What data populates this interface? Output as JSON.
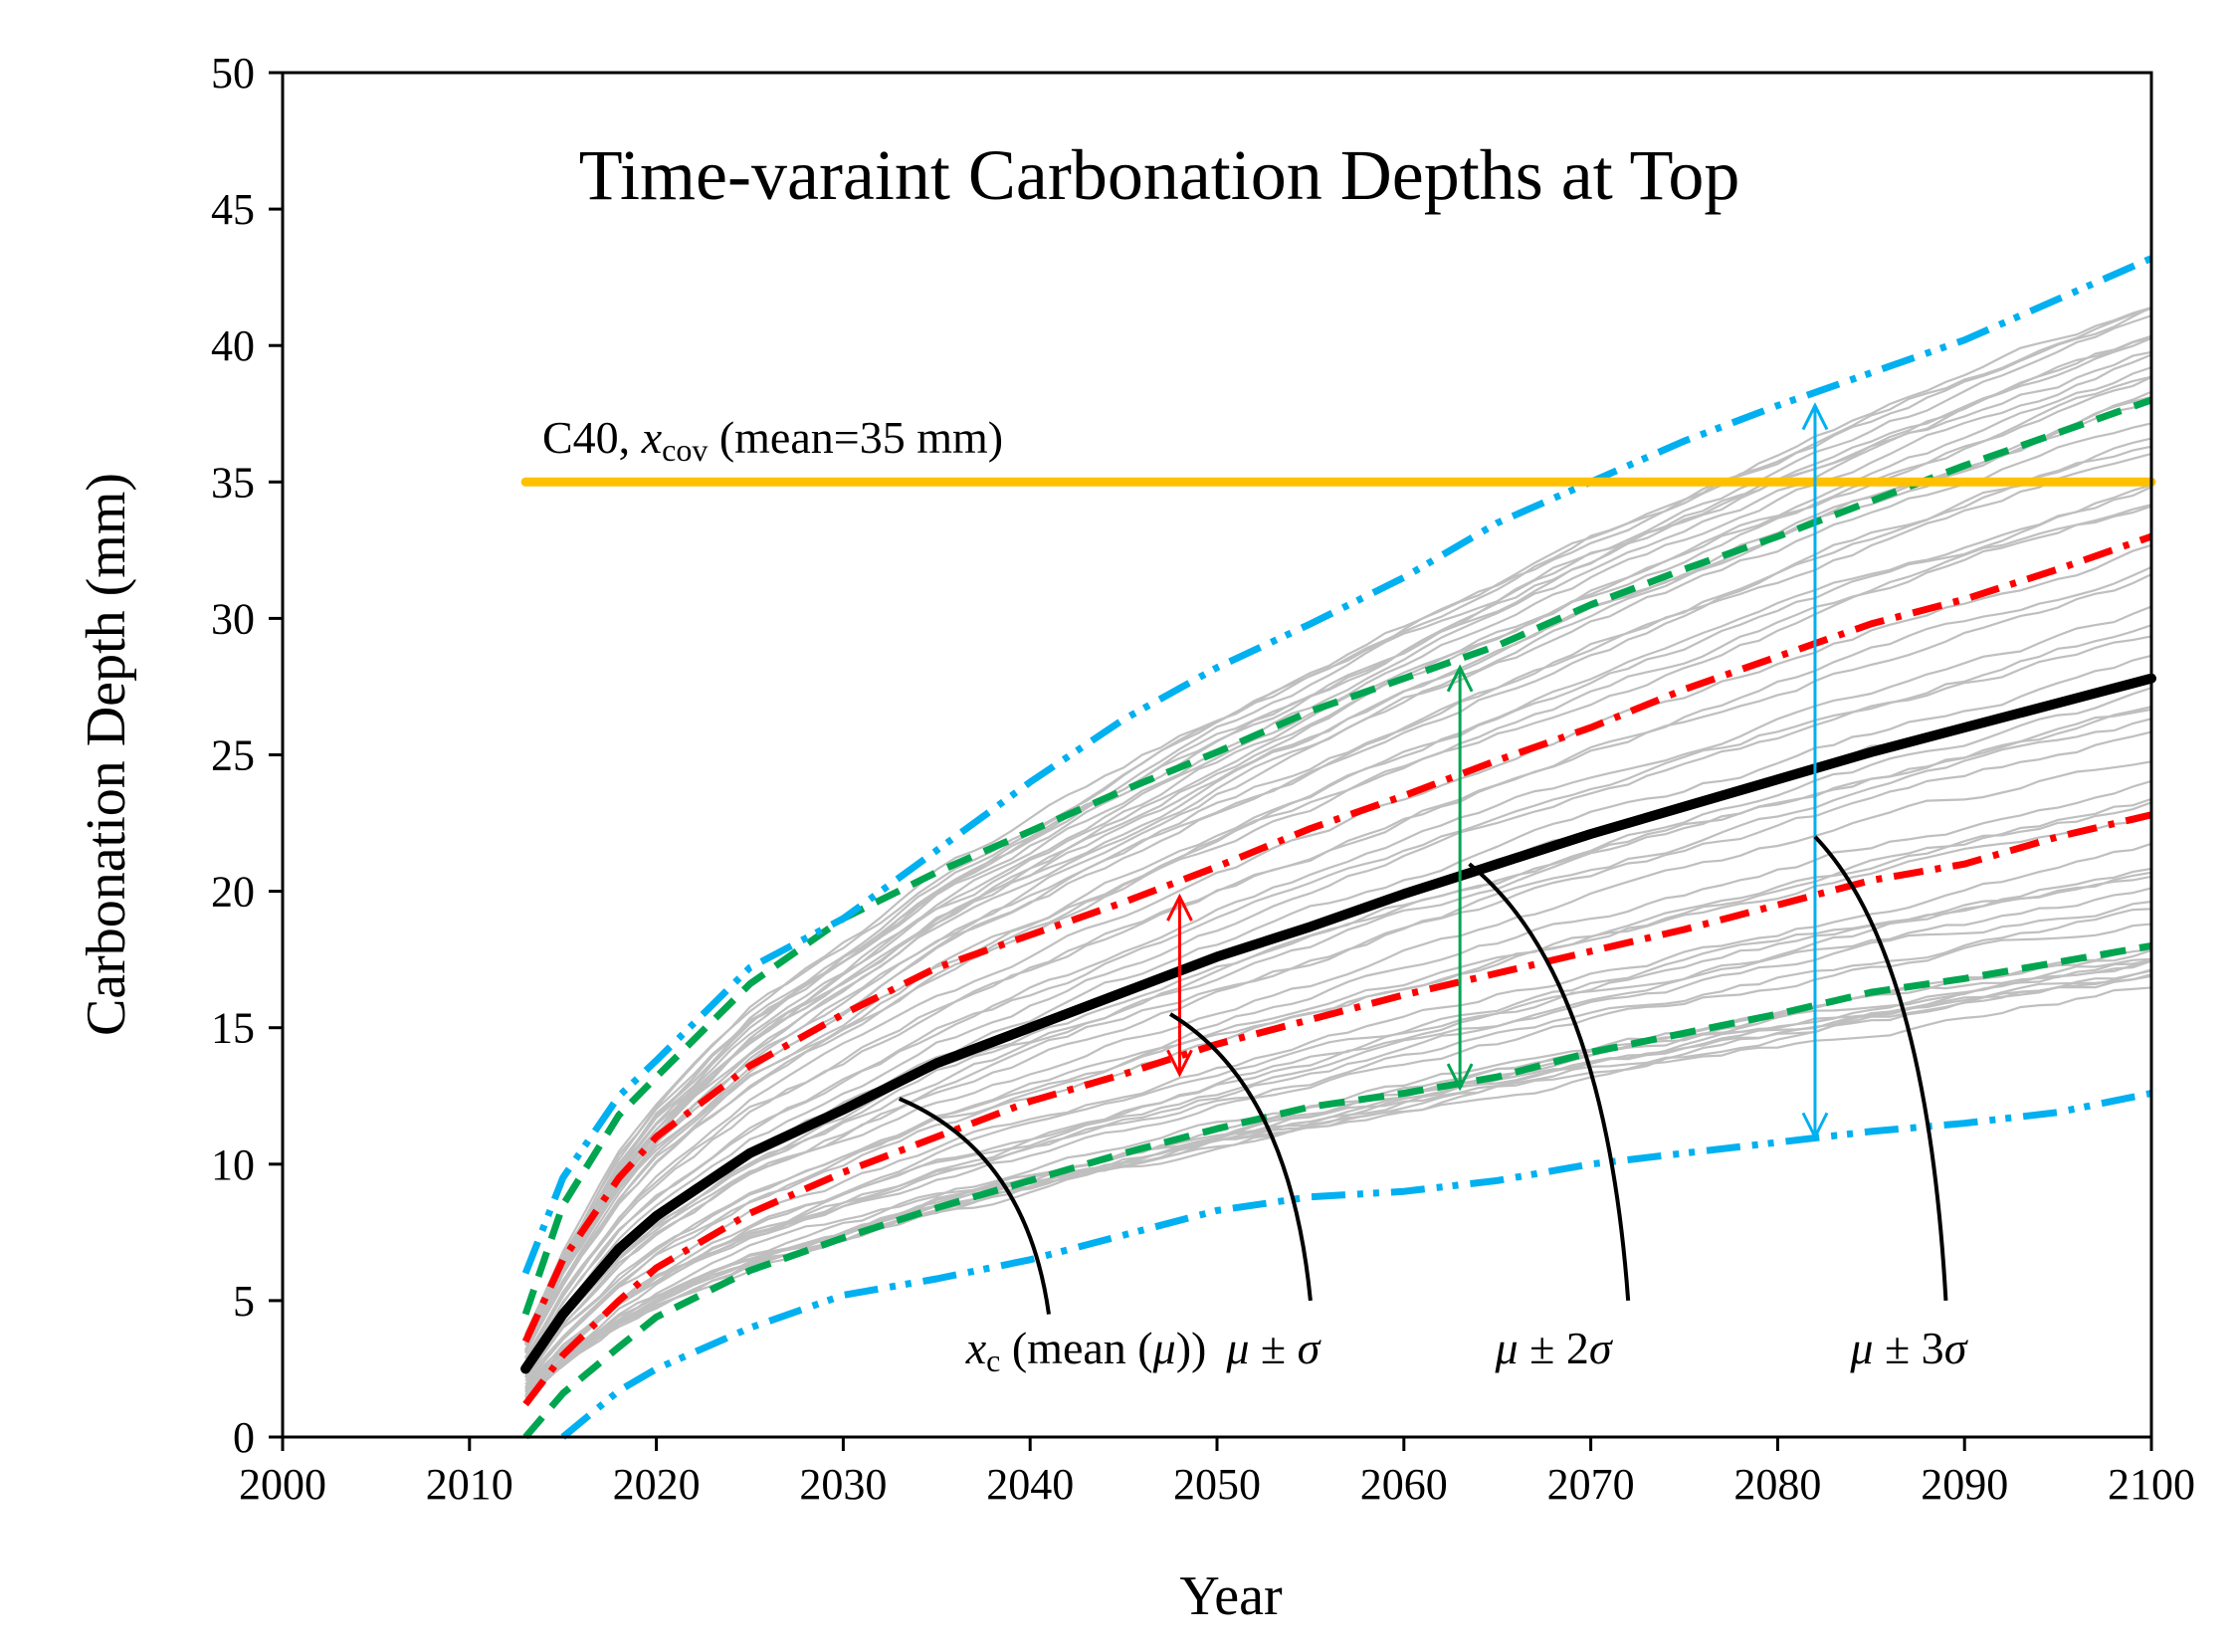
{
  "chart_data": {
    "type": "line",
    "title": "Time-varaint  Carbonation Depths at Top",
    "xlabel": "Year",
    "ylabel": "Carbonation Depth (mm)",
    "xlim": [
      2000,
      2100
    ],
    "ylim": [
      0,
      50
    ],
    "x_ticks": [
      "2000",
      "2010",
      "2020",
      "2030",
      "2040",
      "2050",
      "2060",
      "2070",
      "2080",
      "2090",
      "2100"
    ],
    "y_ticks": [
      "0",
      "5",
      "10",
      "15",
      "20",
      "25",
      "30",
      "35",
      "40",
      "45",
      "50"
    ],
    "grid": false,
    "x": [
      2013,
      2015,
      2018,
      2020,
      2025,
      2030,
      2035,
      2040,
      2045,
      2050,
      2055,
      2060,
      2065,
      2070,
      2075,
      2080,
      2085,
      2090,
      2095,
      2100
    ],
    "series": [
      {
        "name": "mean (μ)",
        "color": "#000000",
        "style": "solid",
        "values": [
          2.5,
          4.5,
          6.9,
          8.1,
          10.4,
          12.0,
          13.7,
          15.0,
          16.3,
          17.6,
          18.7,
          19.9,
          21.0,
          22.1,
          23.1,
          24.1,
          25.1,
          26.0,
          26.9,
          27.8
        ]
      },
      {
        "name": "μ + σ",
        "color": "#ff0000",
        "style": "dashdot",
        "values": [
          3.5,
          6.5,
          9.5,
          11.0,
          13.6,
          15.5,
          17.2,
          18.4,
          19.6,
          20.9,
          22.3,
          23.5,
          24.8,
          26.0,
          27.4,
          28.6,
          29.8,
          30.7,
          31.8,
          33.0
        ]
      },
      {
        "name": "μ - σ",
        "color": "#ff0000",
        "style": "dashdot",
        "values": [
          1.2,
          3.0,
          5.0,
          6.2,
          8.2,
          9.7,
          11.0,
          12.3,
          13.3,
          14.4,
          15.3,
          16.2,
          17.0,
          17.8,
          18.6,
          19.5,
          20.4,
          21.0,
          22.0,
          22.8
        ]
      },
      {
        "name": "μ + 2σ",
        "color": "#00a550",
        "style": "dashed",
        "values": [
          4.5,
          8.5,
          11.8,
          13.2,
          16.6,
          19.0,
          20.7,
          22.2,
          23.7,
          25.1,
          26.6,
          27.8,
          29.0,
          30.5,
          31.8,
          33.0,
          34.3,
          35.6,
          36.8,
          38.0
        ]
      },
      {
        "name": "μ - 2σ",
        "color": "#00a550",
        "style": "dashed",
        "values": [
          0.0,
          1.6,
          3.3,
          4.4,
          6.1,
          7.3,
          8.4,
          9.4,
          10.4,
          11.3,
          12.1,
          12.6,
          13.2,
          14.1,
          14.8,
          15.5,
          16.3,
          16.8,
          17.4,
          18.0
        ]
      },
      {
        "name": "μ + 3σ",
        "color": "#00b0f0",
        "style": "dashdotdot",
        "values": [
          6.0,
          9.5,
          12.5,
          13.8,
          17.2,
          19.0,
          21.5,
          24.0,
          26.3,
          28.2,
          29.8,
          31.5,
          33.5,
          35.0,
          36.5,
          37.8,
          39.0,
          40.2,
          41.7,
          43.2
        ]
      },
      {
        "name": "μ - 3σ",
        "color": "#00b0f0",
        "style": "dashdotdot",
        "values": [
          null,
          0.0,
          1.7,
          2.5,
          4.0,
          5.2,
          5.8,
          6.5,
          7.4,
          8.3,
          8.8,
          9.0,
          9.4,
          10.0,
          10.4,
          10.8,
          11.2,
          11.5,
          11.9,
          12.6
        ]
      }
    ],
    "reference_line": {
      "label_prefix": "C40, ",
      "label_var": "x",
      "label_sub": "cov",
      "label_suffix": " (mean=35 mm)",
      "y": 35,
      "x_start": 2013,
      "x_end": 2100,
      "color": "#ffc000"
    },
    "sample_paths": {
      "count": 60,
      "color": "#bfbfbf",
      "start_year": 2013,
      "end_year": 2100,
      "end_min": 16.5,
      "end_max": 41.0
    },
    "band_arrows": [
      {
        "name": "σ",
        "x": 2048,
        "y1": 13.3,
        "y2": 19.8,
        "color": "#ff0000"
      },
      {
        "name": "2σ",
        "x": 2063,
        "y1": 12.8,
        "y2": 28.2,
        "color": "#00a550"
      },
      {
        "name": "3σ",
        "x": 2082,
        "y1": 11.0,
        "y2": 37.8,
        "color": "#00b0f0"
      }
    ],
    "annotations": [
      {
        "id": "mean",
        "var": "x",
        "sub": "c",
        "rest_open": " (mean (",
        "mu": "μ",
        "rest_close": "))",
        "x": 2043,
        "y": 2.7
      },
      {
        "id": "sigma1",
        "text_mu": "μ",
        "text_pm": " ± ",
        "text_sig": "σ",
        "x": 2053,
        "y": 2.7
      },
      {
        "id": "sigma2",
        "text_mu": "μ",
        "text_pm": " ± 2",
        "text_sig": "σ",
        "x": 2068,
        "y": 2.7
      },
      {
        "id": "sigma3",
        "text_mu": "μ",
        "text_pm": " ± 3",
        "text_sig": "σ",
        "x": 2087,
        "y": 2.7
      }
    ],
    "leader_lines": [
      {
        "to": "mean",
        "from_x": 2033,
        "from_y": 12.4,
        "to_x": 2041,
        "to_y": 4.5
      },
      {
        "to": "sigma1",
        "from_x": 2047.5,
        "from_y": 15.5,
        "to_x": 2055,
        "to_y": 5.0
      },
      {
        "to": "sigma2",
        "from_x": 2063.5,
        "from_y": 21.0,
        "to_x": 2072,
        "to_y": 5.0
      },
      {
        "to": "sigma3",
        "from_x": 2082,
        "from_y": 22.0,
        "to_x": 2089,
        "to_y": 5.0
      }
    ]
  }
}
